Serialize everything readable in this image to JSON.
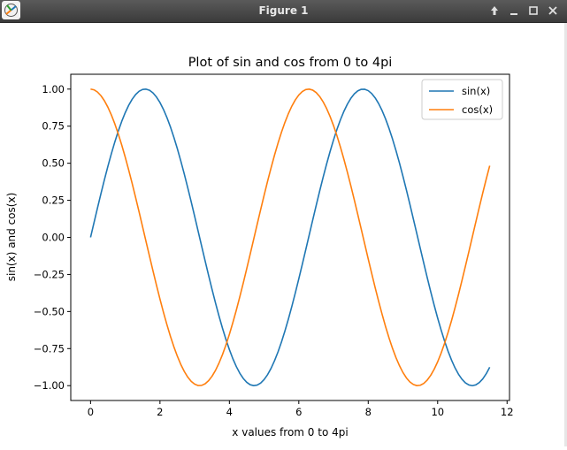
{
  "window": {
    "title": "Figure 1",
    "icons": [
      "app-icon",
      "pin-up-icon",
      "minimize-icon",
      "maximize-icon",
      "close-icon"
    ]
  },
  "chart_data": {
    "type": "line",
    "title": "Plot of sin and cos from 0 to 4pi",
    "xlabel": "x values from 0 to 4pi",
    "ylabel": "sin(x) and cos(x)",
    "xlim": [
      -0.57,
      12.07
    ],
    "ylim": [
      -1.1,
      1.1
    ],
    "x_ticks": [
      "0",
      "2",
      "4",
      "6",
      "8",
      "10",
      "12"
    ],
    "y_ticks": [
      "1.00",
      "0.75",
      "0.50",
      "0.25",
      "0.00",
      "−0.25",
      "−0.50",
      "−0.75",
      "−1.00"
    ],
    "x_tick_values": [
      0,
      2,
      4,
      6,
      8,
      10,
      12
    ],
    "y_tick_values": [
      1,
      0.75,
      0.5,
      0.25,
      0,
      -0.25,
      -0.5,
      -0.75,
      -1
    ],
    "x_range": [
      0,
      11.5
    ],
    "x_step": 0.1,
    "series": [
      {
        "name": "sin(x)",
        "function": "sin",
        "color": "#1f77b4"
      },
      {
        "name": "cos(x)",
        "function": "cos",
        "color": "#ff7f0e"
      }
    ],
    "legend_position": "upper right",
    "grid": false
  }
}
